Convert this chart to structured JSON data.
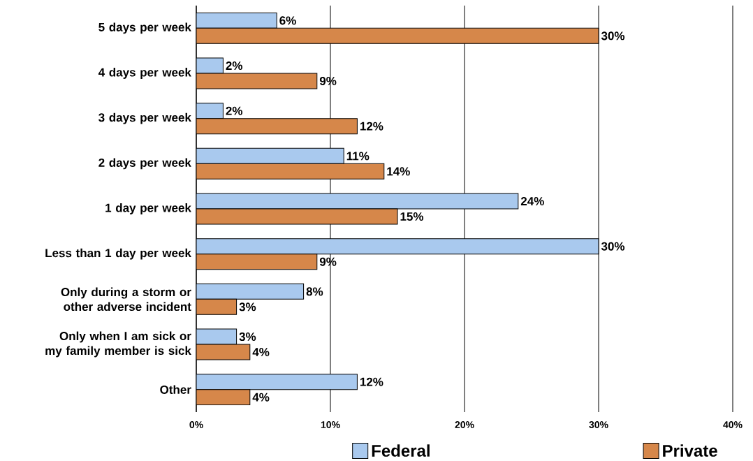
{
  "chart_data": {
    "type": "bar",
    "orientation": "horizontal",
    "categories": [
      "5 days per week",
      "4 days per week",
      "3 days per week",
      "2 days per week",
      "1 day per week",
      "Less than 1 day per week",
      "Only during a storm or other adverse incident",
      "Only when I am sick or my family member is sick",
      "Other"
    ],
    "series": [
      {
        "name": "Federal",
        "color": "#a9c9ee",
        "values": [
          6,
          2,
          2,
          11,
          24,
          30,
          8,
          3,
          12
        ],
        "value_labels": [
          "6%",
          "2%",
          "2%",
          "11%",
          "24%",
          "30%",
          "8%",
          "3%",
          "12%"
        ]
      },
      {
        "name": "Private",
        "color": "#d6874a",
        "values": [
          30,
          9,
          12,
          14,
          15,
          9,
          3,
          4,
          4
        ],
        "value_labels": [
          "30%",
          "9%",
          "12%",
          "14%",
          "15%",
          "9%",
          "3%",
          "4%",
          "4%"
        ]
      }
    ],
    "xlim": [
      0,
      40
    ],
    "xticks": [
      {
        "value": 0,
        "label": "0%"
      },
      {
        "value": 10,
        "label": "10%"
      },
      {
        "value": 20,
        "label": "20%"
      },
      {
        "value": 30,
        "label": "30%"
      },
      {
        "value": 40,
        "label": "40%"
      }
    ],
    "grid": "x",
    "legend": "bottom"
  }
}
